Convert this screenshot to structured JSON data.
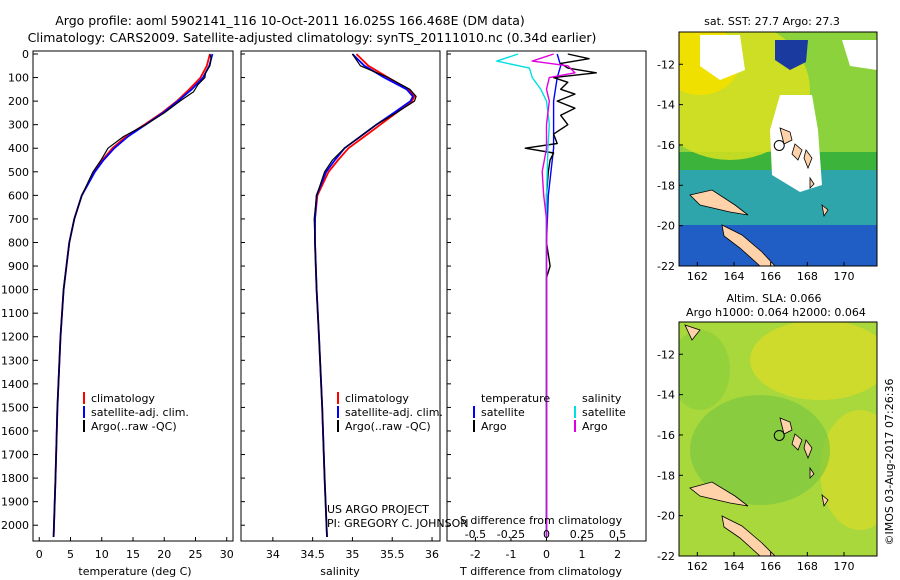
{
  "title": {
    "line1": "Argo profile: aoml 5902141_116 10-Oct-2011 16.025S 166.468E (DM data)",
    "line2": "Climatology: CARS2009. Satellite-adjusted climatology: synTS_20111010.nc (0.34d earlier)"
  },
  "colors": {
    "climatology": "#ff0000",
    "satellite": "#0000ff",
    "argo": "#000000",
    "salinity_satellite": "#00e0e0",
    "salinity_argo": "#e000e0"
  },
  "chart_data": [
    {
      "type": "line",
      "panel": "temperature",
      "xlabel": "temperature (deg C)",
      "xlim": [
        -1,
        31
      ],
      "xticks": [
        0,
        5,
        10,
        15,
        20,
        25,
        30
      ],
      "ylim": [
        0,
        2050
      ],
      "yticks": [
        0,
        100,
        200,
        300,
        400,
        500,
        600,
        700,
        800,
        900,
        1000,
        1100,
        1200,
        1300,
        1400,
        1500,
        1600,
        1700,
        1800,
        1900,
        2000
      ],
      "legend": [
        "climatology",
        "satellite-adj. clim.",
        "Argo(..raw -QC)"
      ],
      "series": [
        {
          "name": "climatology",
          "color": "climatology",
          "depth": [
            0,
            50,
            100,
            150,
            200,
            250,
            300,
            350,
            400,
            450,
            500,
            600,
            700,
            800,
            1000,
            1200,
            1500,
            1800,
            2050
          ],
          "values": [
            27.3,
            26.8,
            25.8,
            24.0,
            22.0,
            19.6,
            16.8,
            13.9,
            11.7,
            10.1,
            8.8,
            6.8,
            5.6,
            4.8,
            3.9,
            3.4,
            2.9,
            2.6,
            2.3
          ]
        },
        {
          "name": "satellite-adj. clim.",
          "color": "satellite",
          "depth": [
            0,
            50,
            100,
            150,
            200,
            250,
            300,
            350,
            400,
            450,
            500,
            600,
            700,
            800,
            1000,
            1200,
            1500,
            1800,
            2050
          ],
          "values": [
            27.7,
            27.2,
            26.2,
            24.4,
            22.2,
            19.8,
            17.0,
            14.2,
            12.0,
            10.3,
            8.9,
            6.8,
            5.6,
            4.8,
            3.9,
            3.4,
            2.9,
            2.6,
            2.3
          ]
        },
        {
          "name": "Argo(..raw -QC)",
          "color": "argo",
          "depth": [
            0,
            20,
            50,
            80,
            100,
            130,
            160,
            200,
            250,
            300,
            350,
            400,
            450,
            500,
            600,
            700,
            800,
            1000,
            1200,
            1500,
            1800,
            2050
          ],
          "values": [
            27.3,
            27.5,
            27.3,
            26.6,
            26.5,
            25.4,
            24.7,
            22.5,
            20.0,
            17.0,
            13.5,
            11.0,
            9.9,
            8.6,
            6.8,
            5.6,
            4.8,
            3.9,
            3.4,
            2.9,
            2.6,
            2.3
          ]
        }
      ]
    },
    {
      "type": "line",
      "panel": "salinity",
      "xlabel": "salinity",
      "xlim": [
        33.6,
        36.1
      ],
      "xticks": [
        34,
        34.5,
        35,
        35.5,
        36
      ],
      "ylim": [
        0,
        2050
      ],
      "legend": [
        "climatology",
        "satellite-adj. clim.",
        "Argo(..raw -QC)"
      ],
      "series": [
        {
          "name": "climatology",
          "color": "climatology",
          "depth": [
            0,
            50,
            100,
            150,
            180,
            200,
            250,
            300,
            350,
            400,
            450,
            500,
            600,
            700,
            800,
            1000,
            1200,
            1500,
            1800,
            2050
          ],
          "values": [
            35.05,
            35.2,
            35.45,
            35.7,
            35.78,
            35.75,
            35.55,
            35.35,
            35.15,
            34.95,
            34.82,
            34.7,
            34.56,
            34.53,
            34.53,
            34.55,
            34.58,
            34.62,
            34.65,
            34.68
          ]
        },
        {
          "name": "satellite-adj. clim.",
          "color": "satellite",
          "depth": [
            0,
            50,
            100,
            150,
            180,
            200,
            250,
            300,
            350,
            400,
            450,
            500,
            600,
            700,
            800,
            1000,
            1200,
            1500,
            1800,
            2050
          ],
          "values": [
            35.0,
            35.15,
            35.4,
            35.68,
            35.76,
            35.73,
            35.52,
            35.3,
            35.1,
            34.9,
            34.78,
            34.67,
            34.55,
            34.53,
            34.53,
            34.55,
            34.58,
            34.62,
            34.65,
            34.68
          ]
        },
        {
          "name": "Argo(..raw -QC)",
          "color": "argo",
          "depth": [
            0,
            50,
            100,
            150,
            180,
            200,
            250,
            300,
            350,
            400,
            450,
            500,
            600,
            700,
            800,
            1000,
            1200,
            1500,
            1800,
            2050
          ],
          "values": [
            35.0,
            35.1,
            35.45,
            35.72,
            35.8,
            35.78,
            35.55,
            35.3,
            35.1,
            34.9,
            34.75,
            34.65,
            34.55,
            34.52,
            34.53,
            34.55,
            34.58,
            34.62,
            34.65,
            34.68
          ]
        }
      ]
    },
    {
      "type": "line",
      "panel": "difference",
      "xlabel_salinity": "S difference from climatology",
      "xlabel_temperature": "T difference from climatology",
      "xlim_temperature": [
        -2.8,
        2.8
      ],
      "xticks_temperature": [
        -2,
        -1,
        0,
        1,
        2
      ],
      "xlim_salinity": [
        -0.7,
        0.7
      ],
      "xticks_salinity_labels": [
        "-0.5",
        "-0.25",
        "0",
        "0.25",
        "0.5"
      ],
      "legend_temperature": [
        "temperature",
        "satellite",
        "Argo"
      ],
      "legend_salinity": [
        "salinity",
        "satellite",
        "Argo"
      ],
      "series": [
        {
          "name": "T satellite",
          "color": "satellite",
          "depth": [
            0,
            50,
            100,
            200,
            300,
            400,
            600,
            800,
            1000,
            2050
          ],
          "values": [
            0.3,
            0.4,
            0.3,
            0.2,
            0.2,
            0.2,
            0.05,
            0.0,
            0.0,
            0.0
          ]
        },
        {
          "name": "T Argo",
          "color": "argo",
          "depth": [
            0,
            20,
            40,
            60,
            80,
            100,
            120,
            150,
            170,
            200,
            230,
            260,
            300,
            340,
            380,
            400,
            420,
            450,
            500,
            600,
            700,
            800,
            900,
            950,
            1000,
            1200,
            2050
          ],
          "values": [
            0.6,
            1.2,
            0.4,
            0.6,
            1.4,
            0.2,
            0.6,
            0.4,
            0.8,
            0.3,
            0.8,
            0.4,
            0.6,
            0.2,
            0.3,
            -0.6,
            0.2,
            0.1,
            0.05,
            0.0,
            0.0,
            0.0,
            0.1,
            0.0,
            0.0,
            0.0,
            0.0
          ]
        },
        {
          "name": "S satellite",
          "color": "salinity_satellite",
          "depth": [
            0,
            30,
            60,
            100,
            150,
            200,
            300,
            400,
            600,
            800,
            1000,
            2050
          ],
          "values": [
            -0.2,
            -0.35,
            -0.12,
            -0.1,
            -0.04,
            0.0,
            0.02,
            0.01,
            0.0,
            0.0,
            0.0,
            0.0
          ]
        },
        {
          "name": "S Argo",
          "color": "salinity_argo",
          "depth": [
            0,
            30,
            50,
            80,
            100,
            150,
            200,
            300,
            400,
            500,
            600,
            700,
            800,
            1000,
            2050
          ],
          "values": [
            0.05,
            -0.1,
            0.15,
            0.2,
            0.02,
            0.0,
            0.02,
            0.0,
            0.0,
            -0.03,
            -0.02,
            0.0,
            0.0,
            0.0,
            0.0
          ]
        }
      ]
    }
  ],
  "depth_ticks": [
    "0",
    "100",
    "200",
    "300",
    "400",
    "500",
    "600",
    "700",
    "800",
    "900",
    "1000",
    "1100",
    "1200",
    "1300",
    "1400",
    "1500",
    "1600",
    "1700",
    "1800",
    "1900",
    "2000"
  ],
  "credits": {
    "line1": "US ARGO PROJECT",
    "line2": "PI: GREGORY C. JOHNSON"
  },
  "maps": {
    "sst_title": "sat. SST: 27.7 Argo: 27.3",
    "sla_title1": "Altim. SLA: 0.066",
    "sla_title2": "Argo h1000: 0.064 h2000: 0.064",
    "lat_ticks": [
      "-12",
      "-14",
      "-16",
      "-18",
      "-20",
      "-22"
    ],
    "lon_ticks": [
      "162",
      "164",
      "166",
      "168",
      "170"
    ],
    "float_lon": 166.468,
    "float_lat": -16.025
  },
  "stamp": "©IMOS 03-Aug-2017 07:26:36"
}
